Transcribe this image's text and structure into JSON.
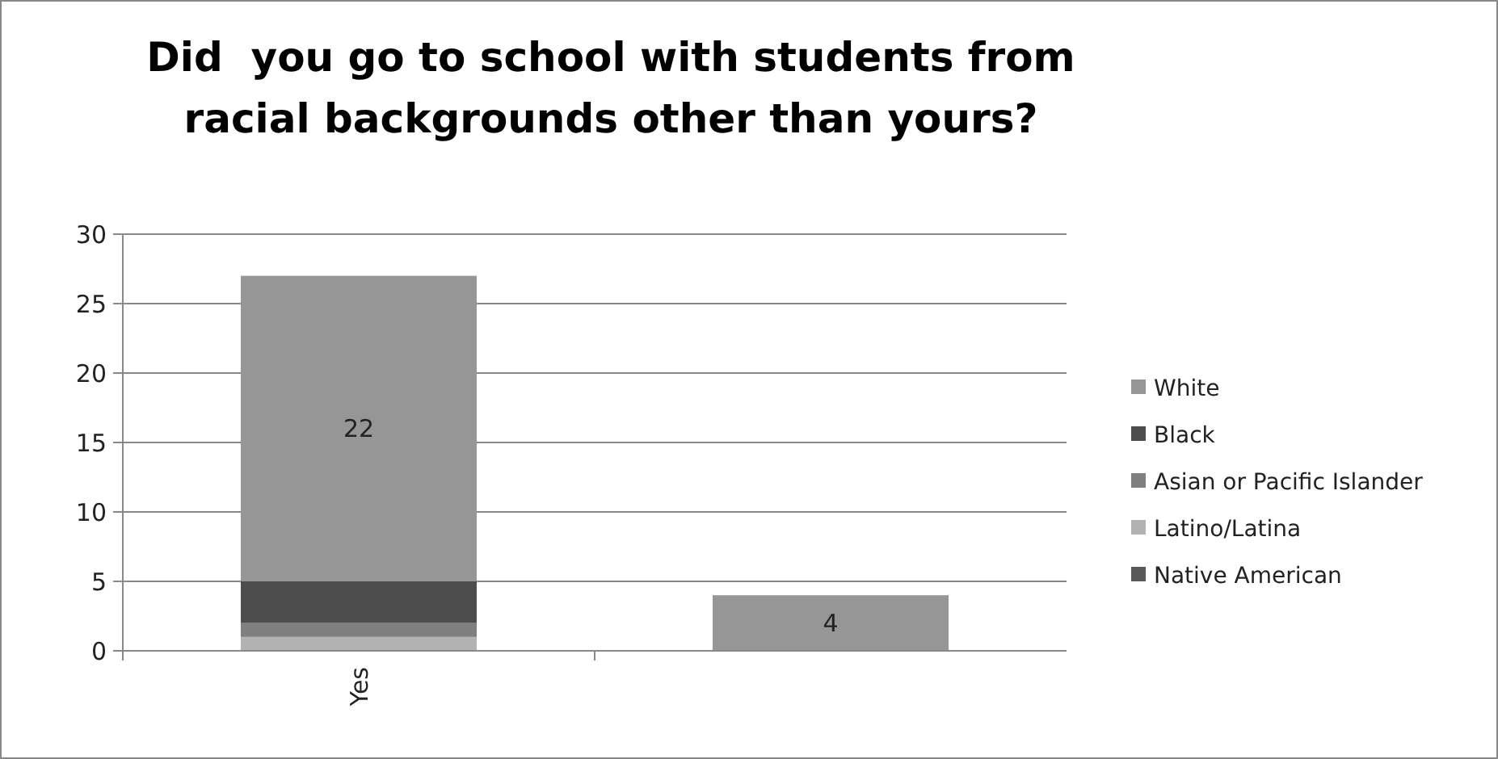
{
  "chart_data": {
    "type": "bar",
    "title": "Did  you go to school with students from racial backgrounds other than yours?",
    "categories": [
      "Yes",
      null
    ],
    "stacked": true,
    "ylim": [
      0,
      30
    ],
    "yticks": [
      0,
      5,
      10,
      15,
      20,
      25,
      30
    ],
    "grid": "y",
    "legend": "right",
    "series": [
      {
        "name": "Native American",
        "color": "#595959",
        "values": [
          0,
          0
        ]
      },
      {
        "name": "Latino/Latina",
        "color": "#b2b2b2",
        "values": [
          1,
          0
        ]
      },
      {
        "name": "Asian or Pacific Islander",
        "color": "#7f7f7f",
        "values": [
          1,
          0
        ]
      },
      {
        "name": "Black",
        "color": "#4d4d4d",
        "values": [
          3,
          0
        ]
      },
      {
        "name": "White",
        "color": "#969696",
        "values": [
          22,
          4
        ],
        "value_labels": [
          "22",
          "4"
        ]
      }
    ]
  }
}
